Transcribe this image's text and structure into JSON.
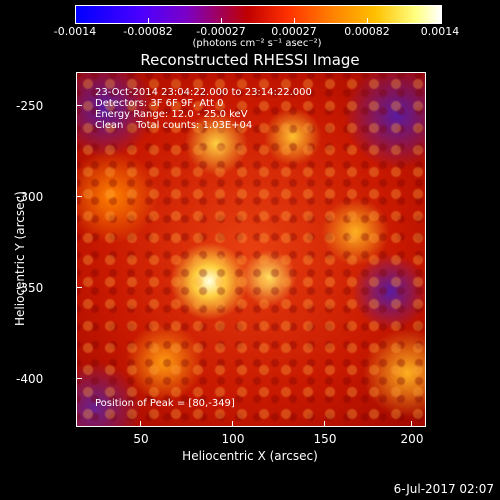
{
  "colorbar": {
    "tick_labels": [
      "-0.0014",
      "-0.00082",
      "-0.00027",
      "0.00027",
      "0.00082",
      "0.0014"
    ],
    "units": "(photons cm⁻² s⁻¹ asec⁻²)",
    "colors": [
      "#0000ff",
      "#7a00c8",
      "#c00000",
      "#ff8000",
      "#ffff80",
      "#ffffff"
    ]
  },
  "title": "Reconstructed RHESSI Image",
  "annotations": {
    "time_range": "23-Oct-2014 23:04:22.000 to 23:14:22.000",
    "detectors": "Detectors: 3F 6F 9F, Att 0",
    "energy_range": "Energy Range: 12.0 - 25.0 keV",
    "clean_counts": "Clean    Total counts: 1.03E+04",
    "peak_position": "Position of Peak = [80,-349]"
  },
  "chart_data": {
    "type": "heatmap",
    "title": "Reconstructed RHESSI Image",
    "xlabel": "Heliocentric X (arcsec)",
    "ylabel": "Heliocentric Y (arcsec)",
    "x_ticks": [
      50,
      100,
      150,
      200
    ],
    "y_ticks": [
      -250,
      -300,
      -350,
      -400
    ],
    "peak": [
      80,
      -349
    ],
    "zlim": [
      -0.0014,
      0.0014
    ]
  },
  "axes": {
    "x_tick_labels": [
      "50",
      "100",
      "150",
      "200"
    ],
    "y_tick_labels": [
      "-250",
      "-300",
      "-350",
      "-400"
    ]
  },
  "footer": {
    "date": "6-Jul-2017 02:07"
  }
}
